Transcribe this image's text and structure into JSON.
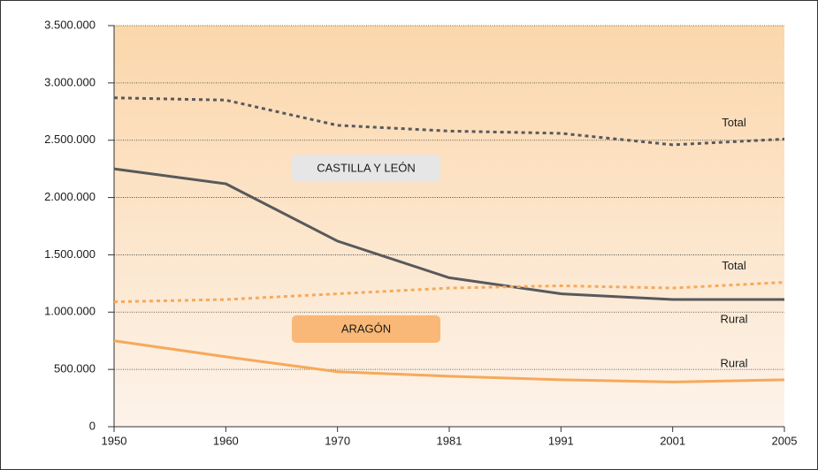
{
  "chart_data": {
    "type": "line",
    "categories": [
      "1950",
      "1960",
      "1970",
      "1981",
      "1991",
      "2001",
      "2005"
    ],
    "series": [
      {
        "name": "Total",
        "color": "#58595b",
        "style": "dashed",
        "values": [
          2870000,
          2850000,
          2630000,
          2580000,
          2560000,
          2460000,
          2510000
        ]
      },
      {
        "name": "Rural",
        "color": "#58595b",
        "style": "solid",
        "values": [
          2250000,
          2120000,
          1620000,
          1300000,
          1160000,
          1110000,
          1110000
        ]
      },
      {
        "name": "Total",
        "color": "#f6a95a",
        "style": "dashed",
        "values": [
          1090000,
          1110000,
          1160000,
          1210000,
          1230000,
          1210000,
          1260000
        ]
      },
      {
        "name": "Rural",
        "color": "#f6a95a",
        "style": "solid",
        "values": [
          750000,
          610000,
          480000,
          440000,
          410000,
          390000,
          410000
        ]
      }
    ],
    "annotations": [
      {
        "text": "CASTILLA Y LEÓN",
        "color": "#e6e6e6"
      },
      {
        "text": "ARAGÓN",
        "color": "#f9b877"
      }
    ],
    "ylim": [
      0,
      3500000
    ],
    "yticks": [
      0,
      {
        "value": 500000,
        "label": "500.000"
      },
      {
        "value": 1000000,
        "label": "1.000.000"
      },
      {
        "value": 1500000,
        "label": "1.500.000"
      },
      {
        "value": 2000000,
        "label": "2.000.000"
      },
      {
        "value": 2500000,
        "label": "2.500.000"
      },
      {
        "value": 3000000,
        "label": "3.000.000"
      },
      {
        "value": 3500000,
        "label": "3.500.000"
      }
    ],
    "grid": true
  }
}
